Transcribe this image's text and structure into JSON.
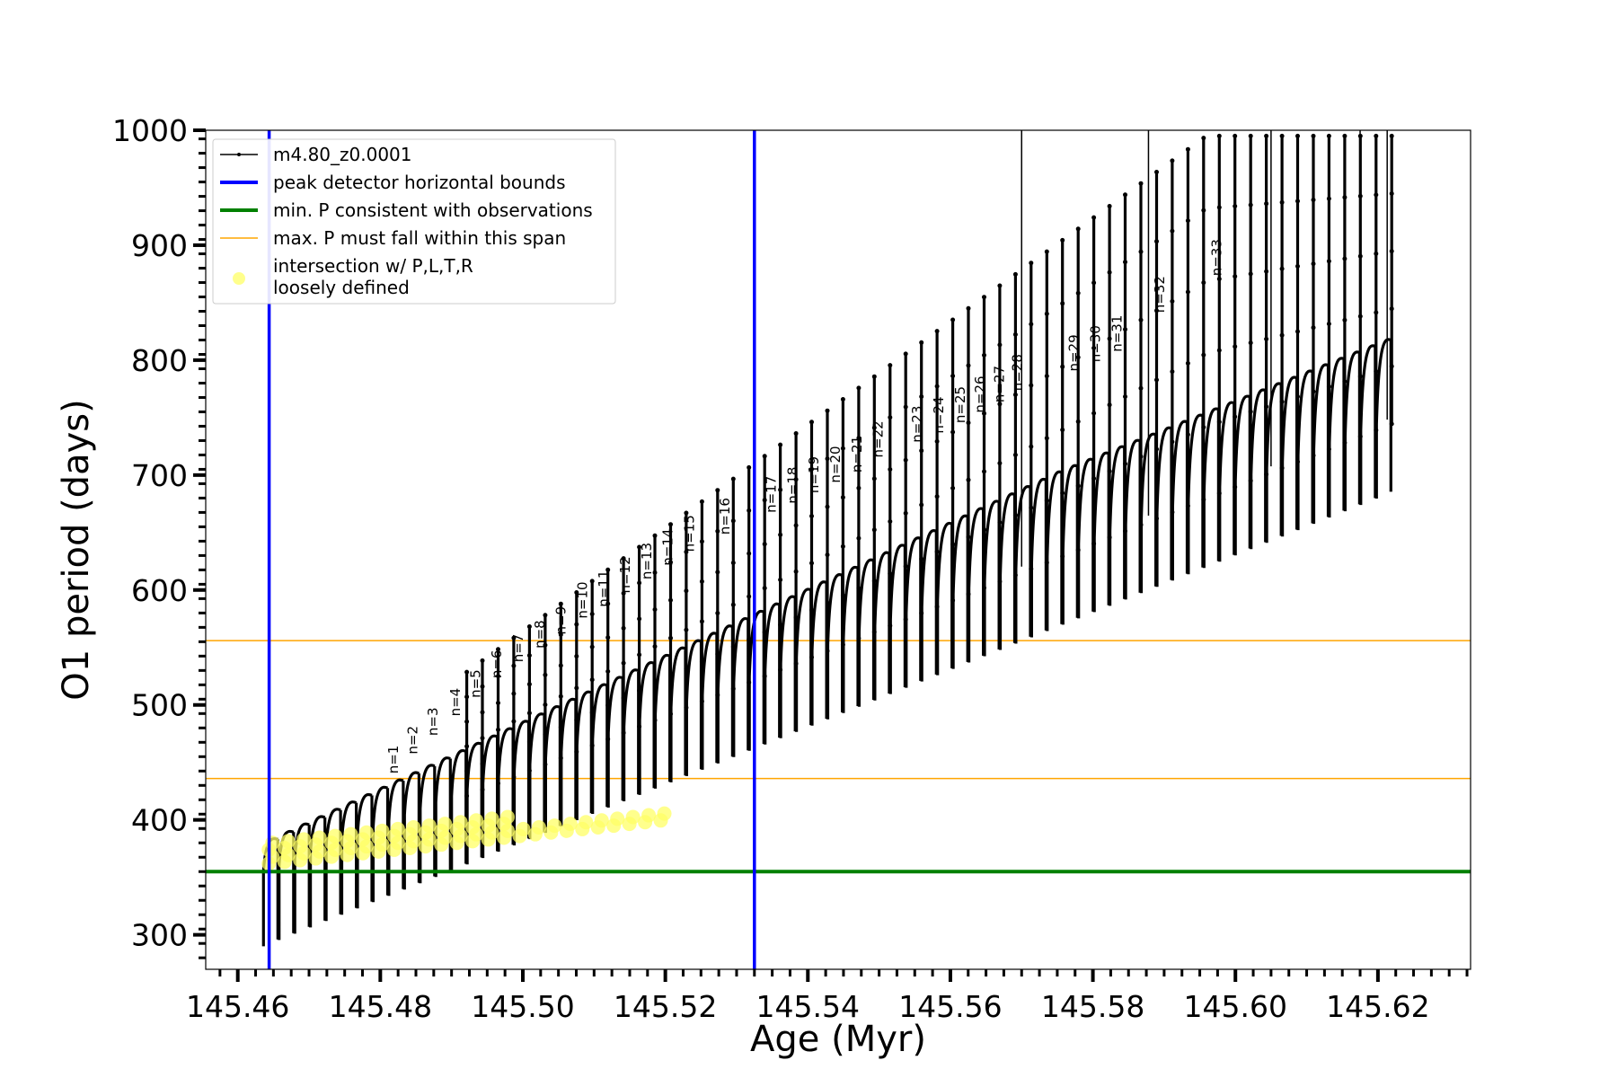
{
  "chart_data": {
    "type": "line",
    "xlabel": "Age (Myr)",
    "ylabel": "O1 period (days)",
    "xlim": [
      145.4555,
      145.633
    ],
    "ylim": [
      270,
      1000
    ],
    "xticks": [
      "145.46",
      "145.48",
      "145.50",
      "145.52",
      "145.54",
      "145.56",
      "145.58",
      "145.60",
      "145.62"
    ],
    "xtick_values": [
      145.46,
      145.48,
      145.5,
      145.52,
      145.54,
      145.56,
      145.58,
      145.6,
      145.62
    ],
    "yticks": [
      "300",
      "400",
      "500",
      "600",
      "700",
      "800",
      "900",
      "1000"
    ],
    "ytick_values": [
      300,
      400,
      500,
      600,
      700,
      800,
      900,
      1000
    ],
    "legend_position": "upper-left",
    "legend": [
      {
        "label": "m4.80_z0.0001",
        "color": "#000000",
        "kind": "line-marker"
      },
      {
        "label": "peak detector horizontal bounds",
        "color": "#0000ff",
        "kind": "line-thick"
      },
      {
        "label": "min. P consistent with observations",
        "color": "#008000",
        "kind": "line-thick"
      },
      {
        "label": "max. P must fall within this span",
        "color": "#ffa500",
        "kind": "line-thin"
      },
      {
        "label": "intersection w/ P,L,T,R",
        "label2": "loosely defined",
        "color": "#ffff66",
        "kind": "dot"
      }
    ],
    "series_track": {
      "color": "#000000",
      "x_start": 145.4636,
      "x_end": 145.622,
      "floor_start": 355,
      "floor_end": 750
    },
    "vertical_bounds": {
      "color": "#0000ff",
      "x": [
        145.4644,
        145.5325
      ]
    },
    "min_period_line": {
      "color": "#008000",
      "y": 355
    },
    "max_period_span": {
      "color": "#ffa500",
      "y": [
        436,
        556
      ]
    },
    "tall_spikes_x": [
      145.57,
      145.5878,
      145.605,
      145.6175,
      145.6213
    ],
    "yellow_dot_x_end": 145.5325,
    "annotations": [
      {
        "label": "n=1",
        "x": 145.4825,
        "y": 437
      },
      {
        "label": "n=2",
        "x": 145.4852,
        "y": 454
      },
      {
        "label": "n=3",
        "x": 145.488,
        "y": 470
      },
      {
        "label": "n=4",
        "x": 145.4912,
        "y": 487
      },
      {
        "label": "n=5",
        "x": 145.494,
        "y": 503
      },
      {
        "label": "n=6",
        "x": 145.497,
        "y": 520
      },
      {
        "label": "n=7",
        "x": 145.5,
        "y": 534
      },
      {
        "label": "n=8",
        "x": 145.503,
        "y": 546
      },
      {
        "label": "n=9",
        "x": 145.506,
        "y": 558
      },
      {
        "label": "n=10",
        "x": 145.509,
        "y": 572
      },
      {
        "label": "n=11",
        "x": 145.512,
        "y": 582
      },
      {
        "label": "n=12",
        "x": 145.515,
        "y": 594
      },
      {
        "label": "n=13",
        "x": 145.518,
        "y": 606
      },
      {
        "label": "n=14",
        "x": 145.521,
        "y": 618
      },
      {
        "label": "n=15",
        "x": 145.524,
        "y": 630
      },
      {
        "label": "n=16",
        "x": 145.529,
        "y": 645
      },
      {
        "label": "n=17",
        "x": 145.5355,
        "y": 664
      },
      {
        "label": "n=18",
        "x": 145.5385,
        "y": 672
      },
      {
        "label": "n=19",
        "x": 145.5415,
        "y": 681
      },
      {
        "label": "n=20",
        "x": 145.5445,
        "y": 690
      },
      {
        "label": "n=21",
        "x": 145.5475,
        "y": 699
      },
      {
        "label": "n=22",
        "x": 145.5505,
        "y": 712
      },
      {
        "label": "n=23",
        "x": 145.556,
        "y": 725
      },
      {
        "label": "n=24",
        "x": 145.559,
        "y": 733
      },
      {
        "label": "n=25",
        "x": 145.562,
        "y": 742
      },
      {
        "label": "n=26",
        "x": 145.5648,
        "y": 751
      },
      {
        "label": "n=27",
        "x": 145.5675,
        "y": 760
      },
      {
        "label": "n=28",
        "x": 145.57,
        "y": 770
      },
      {
        "label": "n=29",
        "x": 145.578,
        "y": 787
      },
      {
        "label": "n=30",
        "x": 145.581,
        "y": 795
      },
      {
        "label": "n=31",
        "x": 145.584,
        "y": 804
      },
      {
        "label": "n=32",
        "x": 145.59,
        "y": 838
      },
      {
        "label": "n=33",
        "x": 145.598,
        "y": 870
      }
    ]
  }
}
